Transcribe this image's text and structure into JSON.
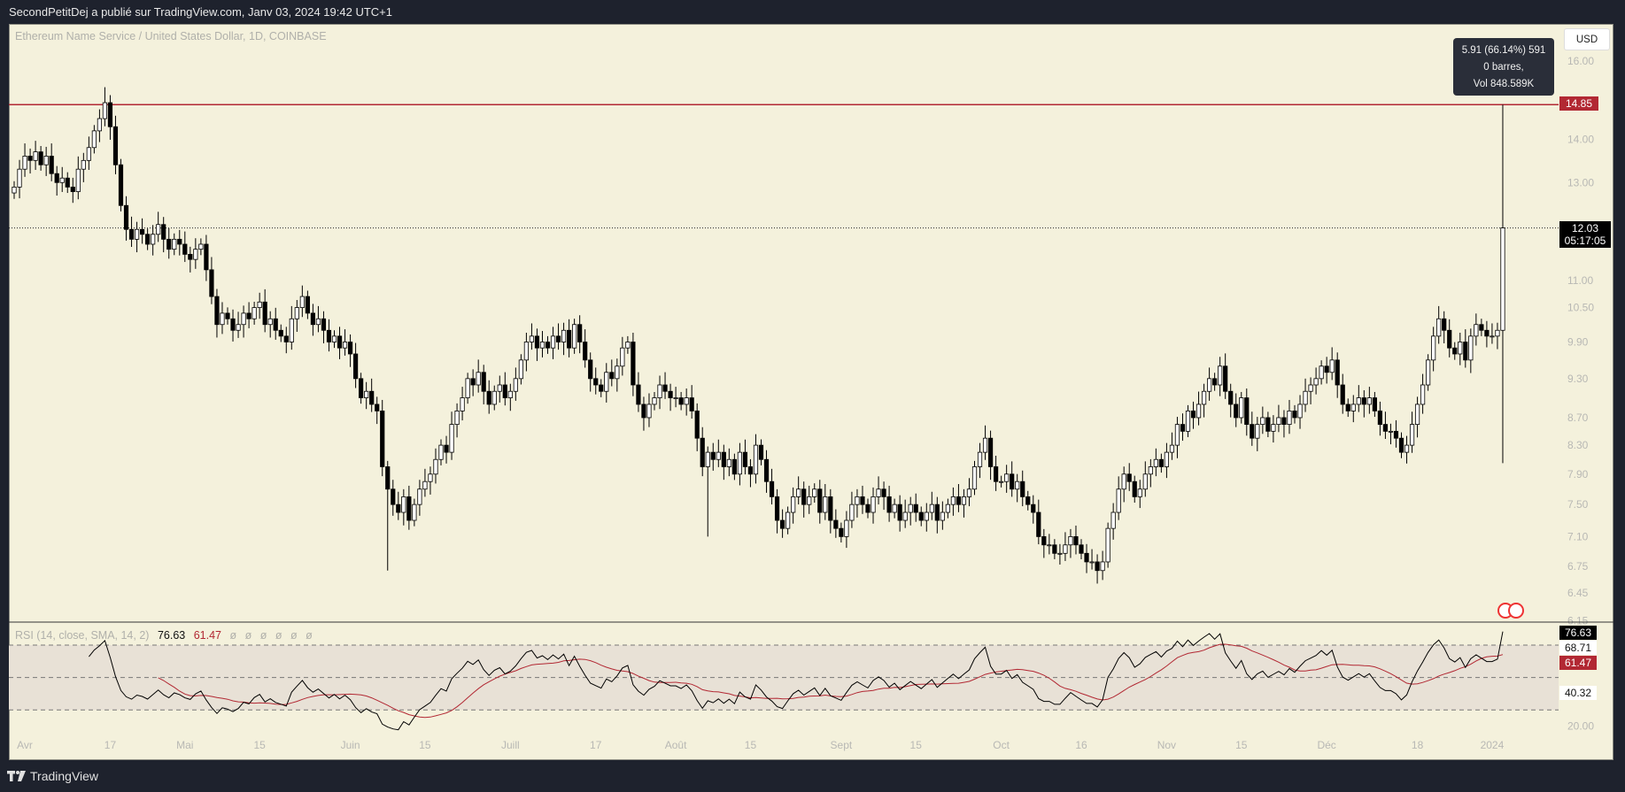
{
  "header": {
    "published": "SecondPetitDej a publié sur TradingView.com, Janv 03, 2024 19:42 UTC+1"
  },
  "footer": {
    "brand": "TradingView"
  },
  "chart_data": [
    {
      "type": "candlestick",
      "title": "Ethereum Name Service / United States Dollar, 1D, COINBASE",
      "currency": "USD",
      "scale": "log",
      "ylim": [
        6.1,
        16.5
      ],
      "start_date": "2023-03-30",
      "closes": [
        12.9,
        13.3,
        13.6,
        13.5,
        13.7,
        13.4,
        13.6,
        13.2,
        13.0,
        13.1,
        12.9,
        12.8,
        13.3,
        13.5,
        13.8,
        14.2,
        14.5,
        14.9,
        14.3,
        13.4,
        12.5,
        12.0,
        11.8,
        12.0,
        11.9,
        11.7,
        11.9,
        12.1,
        11.8,
        11.6,
        11.8,
        11.7,
        11.5,
        11.4,
        11.6,
        11.7,
        11.2,
        10.7,
        10.2,
        10.4,
        10.3,
        10.1,
        10.2,
        10.4,
        10.3,
        10.5,
        10.6,
        10.2,
        10.3,
        10.1,
        10.0,
        9.9,
        10.3,
        10.5,
        10.7,
        10.4,
        10.2,
        10.3,
        10.1,
        9.9,
        10.0,
        9.8,
        9.9,
        9.7,
        9.3,
        9.0,
        9.1,
        8.9,
        8.8,
        8.0,
        7.7,
        7.5,
        7.4,
        7.6,
        7.3,
        7.5,
        7.7,
        7.8,
        7.9,
        8.1,
        8.3,
        8.2,
        8.6,
        8.8,
        9.0,
        9.3,
        9.2,
        9.4,
        9.1,
        8.9,
        9.1,
        9.2,
        9.0,
        9.1,
        9.3,
        9.6,
        9.9,
        10.0,
        9.8,
        9.9,
        9.8,
        10.0,
        9.9,
        10.1,
        9.8,
        10.2,
        9.9,
        9.6,
        9.3,
        9.2,
        9.1,
        9.4,
        9.3,
        9.5,
        9.8,
        9.9,
        9.2,
        8.9,
        8.7,
        8.9,
        9.0,
        9.2,
        9.1,
        9.0,
        9.0,
        8.9,
        9.0,
        8.8,
        8.4,
        8.0,
        8.2,
        8.1,
        8.2,
        8.0,
        8.1,
        7.9,
        8.2,
        8.0,
        7.9,
        8.3,
        8.1,
        7.8,
        7.6,
        7.3,
        7.2,
        7.4,
        7.6,
        7.7,
        7.5,
        7.6,
        7.7,
        7.4,
        7.6,
        7.3,
        7.2,
        7.1,
        7.3,
        7.5,
        7.6,
        7.5,
        7.4,
        7.6,
        7.7,
        7.6,
        7.4,
        7.5,
        7.3,
        7.4,
        7.5,
        7.4,
        7.3,
        7.4,
        7.5,
        7.3,
        7.4,
        7.5,
        7.6,
        7.5,
        7.6,
        7.7,
        8.0,
        8.2,
        8.4,
        8.0,
        7.8,
        7.8,
        7.9,
        7.7,
        7.8,
        7.6,
        7.5,
        7.4,
        7.1,
        7.0,
        7.0,
        6.9,
        6.9,
        7.0,
        7.1,
        7.0,
        6.9,
        6.8,
        6.8,
        6.7,
        6.8,
        7.2,
        7.4,
        7.7,
        7.9,
        7.8,
        7.6,
        7.7,
        7.9,
        8.0,
        8.1,
        8.0,
        8.2,
        8.3,
        8.6,
        8.5,
        8.8,
        8.7,
        8.9,
        9.1,
        9.3,
        9.2,
        9.5,
        9.1,
        8.9,
        8.7,
        9.0,
        8.6,
        8.4,
        8.6,
        8.7,
        8.5,
        8.6,
        8.7,
        8.6,
        8.8,
        8.7,
        8.9,
        9.1,
        9.2,
        9.3,
        9.5,
        9.4,
        9.6,
        9.2,
        8.9,
        8.8,
        8.9,
        9.0,
        8.9,
        9.0,
        8.8,
        8.6,
        8.5,
        8.5,
        8.4,
        8.2,
        8.3,
        8.6,
        8.9,
        9.2,
        9.6,
        10.0,
        10.3,
        10.1,
        9.8,
        9.7,
        9.9,
        9.6,
        10.0,
        10.2,
        10.1,
        10.0,
        10.0,
        10.1,
        12.03
      ],
      "notable_wicks": [
        {
          "date": "2023-04-16",
          "high": 15.3
        },
        {
          "date": "2023-06-08",
          "low": 6.7
        },
        {
          "date": "2023-08-07",
          "low": 7.1
        },
        {
          "date": "2024-01-03",
          "high": 14.85,
          "low": 8.05
        }
      ],
      "y_ticks": [
        "16.00",
        "14.00",
        "13.00",
        "11.00",
        "10.50",
        "9.90",
        "9.30",
        "8.70",
        "8.30",
        "7.90",
        "7.50",
        "7.10",
        "6.75",
        "6.45",
        "6.15"
      ],
      "x_ticks": [
        {
          "label": "Avr",
          "date": "2023-04-01"
        },
        {
          "label": "17",
          "date": "2023-04-17"
        },
        {
          "label": "Mai",
          "date": "2023-05-01"
        },
        {
          "label": "15",
          "date": "2023-05-15"
        },
        {
          "label": "Juin",
          "date": "2023-06-01"
        },
        {
          "label": "15",
          "date": "2023-06-15"
        },
        {
          "label": "Juill",
          "date": "2023-07-01"
        },
        {
          "label": "17",
          "date": "2023-07-17"
        },
        {
          "label": "Août",
          "date": "2023-08-01"
        },
        {
          "label": "15",
          "date": "2023-08-15"
        },
        {
          "label": "Sept",
          "date": "2023-09-01"
        },
        {
          "label": "15",
          "date": "2023-09-15"
        },
        {
          "label": "Oct",
          "date": "2023-10-01"
        },
        {
          "label": "16",
          "date": "2023-10-16"
        },
        {
          "label": "Nov",
          "date": "2023-11-01"
        },
        {
          "label": "15",
          "date": "2023-11-15"
        },
        {
          "label": "Déc",
          "date": "2023-12-01"
        },
        {
          "label": "18",
          "date": "2023-12-18"
        },
        {
          "label": "2024",
          "date": "2024-01-01"
        }
      ],
      "horizontal_line": {
        "price": 14.85,
        "label": "14.85",
        "color": "#b22833"
      },
      "last_price": {
        "label": "12.03",
        "countdown": "05:17:05"
      },
      "tooltip": {
        "line1": "5.91 (66.14%) 591",
        "line2": "0 barres,",
        "line3": "Vol 848.589K"
      },
      "colors": {
        "up": "#ffffff",
        "down": "#000000",
        "background": "#f4f1dc"
      }
    },
    {
      "type": "line",
      "title": "RSI (14, close, SMA, 14, 2)",
      "ylim": [
        15,
        85
      ],
      "bands": [
        70,
        50,
        30
      ],
      "y_ticks": [
        "20.00"
      ],
      "values": {
        "rsi": "76.63",
        "sma": "61.47",
        "extra": [
          "ø",
          "ø",
          "ø",
          "ø",
          "ø",
          "ø"
        ]
      },
      "axis_labels": {
        "rsi": "76.63",
        "upper": "68.71",
        "sma": "61.47",
        "lower": "40.32"
      },
      "series": [
        {
          "key": "rsi",
          "color": "#000000"
        },
        {
          "key": "sma",
          "color": "#b22833"
        }
      ]
    }
  ]
}
